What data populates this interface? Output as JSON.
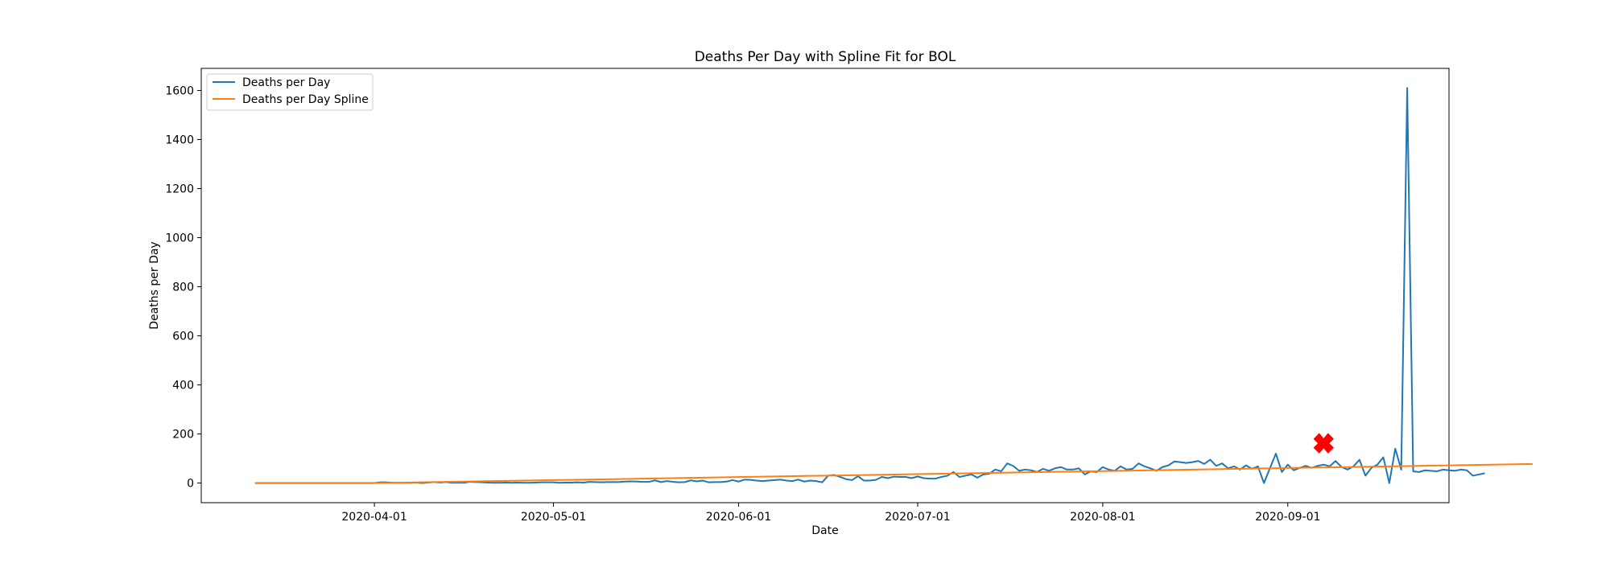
{
  "chart_data": {
    "type": "line",
    "title": "Deaths Per Day with Spline Fit for BOL",
    "xlabel": "Date",
    "ylabel": "Deaths per Day",
    "x_start_date": "2020-03-12",
    "x_end_date": "2020-09-19",
    "xlim": [
      "2020-03-03",
      "2020-09-28"
    ],
    "ylim": [
      -80,
      1690
    ],
    "x_ticks": [
      "2020-04-01",
      "2020-05-01",
      "2020-06-01",
      "2020-07-01",
      "2020-08-01",
      "2020-09-01"
    ],
    "y_ticks": [
      0,
      200,
      400,
      600,
      800,
      1000,
      1200,
      1400,
      1600
    ],
    "grid": false,
    "legend_position": "upper-left",
    "series": [
      {
        "name": "Deaths per Day",
        "color": "#1f77b4",
        "values": [
          0,
          0,
          0,
          0,
          0,
          0,
          0,
          0,
          0,
          0,
          0,
          0,
          0,
          0,
          0,
          0,
          0,
          0,
          0,
          0,
          0,
          3,
          3,
          1,
          1,
          1,
          1,
          2,
          0,
          2,
          4,
          2,
          4,
          1,
          2,
          1,
          5,
          4,
          3,
          2,
          1,
          1,
          2,
          1,
          2,
          1,
          1,
          2,
          3,
          3,
          3,
          1,
          2,
          2,
          3,
          2,
          5,
          4,
          3,
          4,
          4,
          4,
          6,
          7,
          6,
          5,
          5,
          11,
          4,
          8,
          5,
          3,
          4,
          11,
          7,
          10,
          3,
          4,
          4,
          6,
          12,
          6,
          14,
          13,
          10,
          8,
          10,
          12,
          14,
          10,
          8,
          14,
          6,
          10,
          8,
          3,
          30,
          33,
          25,
          16,
          12,
          28,
          10,
          10,
          13,
          25,
          20,
          26,
          25,
          25,
          20,
          27,
          20,
          18,
          18,
          25,
          30,
          45,
          25,
          30,
          35,
          22,
          35,
          38,
          55,
          48,
          80,
          70,
          50,
          55,
          52,
          45,
          58,
          50,
          60,
          65,
          55,
          55,
          60,
          35,
          48,
          45,
          65,
          55,
          50,
          68,
          55,
          58,
          80,
          68,
          60,
          50,
          65,
          72,
          88,
          85,
          82,
          85,
          90,
          78,
          95,
          70,
          80,
          60,
          68,
          55,
          72,
          58,
          68,
          0,
          60,
          120,
          45,
          75,
          52,
          62,
          70,
          62,
          70,
          75,
          68,
          90,
          65,
          55,
          68,
          95,
          30,
          62,
          75,
          105,
          0,
          140,
          55,
          1610,
          48,
          45,
          52,
          50,
          48,
          55,
          52,
          50,
          55,
          52,
          30,
          35,
          40
        ]
      },
      {
        "name": "Deaths per Day Spline",
        "color": "#ff7f0e",
        "values": [
          0,
          0,
          0,
          0,
          0,
          0,
          0,
          0,
          0,
          0,
          0,
          0,
          0,
          0,
          0,
          0,
          0,
          0,
          0,
          0,
          0,
          0.4,
          0.8,
          1.2,
          1.6,
          2.0,
          2.4,
          2.8,
          3.2,
          3.6,
          4.0,
          4.4,
          4.8,
          5.2,
          5.6,
          6.0,
          6.4,
          6.8,
          7.2,
          7.6,
          8.0,
          8.4,
          8.8,
          9.2,
          9.6,
          10.0,
          10.4,
          10.8,
          11.2,
          11.6,
          12.0,
          12.4,
          12.8,
          13.2,
          13.6,
          14.0,
          14.4,
          14.8,
          15.2,
          15.6,
          16.0,
          16.4,
          16.8,
          17.2,
          17.6,
          18.0,
          18.4,
          18.8,
          19.2,
          19.6,
          20.0,
          20.4,
          20.8,
          21.2,
          21.6,
          22.0,
          22.4,
          22.8,
          23.2,
          23.6,
          24.0,
          24.4,
          24.8,
          25.2,
          25.6,
          26.0,
          26.4,
          26.8,
          27.2,
          27.6,
          28.0,
          28.4,
          28.8,
          29.2,
          29.6,
          30.0,
          30.4,
          30.8,
          31.2,
          31.6,
          32.0,
          32.4,
          32.8,
          33.2,
          33.6,
          34.0,
          34.4,
          34.8,
          35.2,
          35.6,
          36.0,
          36.4,
          36.8,
          37.2,
          37.6,
          38.0,
          38.4,
          38.8,
          39.2,
          39.6,
          40.0,
          40.4,
          40.8,
          41.2,
          41.6,
          42.0,
          42.4,
          42.8,
          43.2,
          43.6,
          44.0,
          44.4,
          44.8,
          45.2,
          45.6,
          46.0,
          46.4,
          46.8,
          47.2,
          47.6,
          48.0,
          48.4,
          48.8,
          49.2,
          49.6,
          50.0,
          50.4,
          50.8,
          51.2,
          51.6,
          52.0,
          52.4,
          52.8,
          53.2,
          53.6,
          54.0,
          54.4,
          54.8,
          55.2,
          55.6,
          56.0,
          56.4,
          56.8,
          57.2,
          57.6,
          58.0,
          58.4,
          58.8,
          59.2,
          59.6,
          60.0,
          60.4,
          60.8,
          61.2,
          61.6,
          62.0,
          62.4,
          62.8,
          63.2,
          63.6,
          64.0,
          64.4,
          64.8,
          65.2,
          65.6,
          66.0,
          66.4,
          66.8,
          67.2,
          67.6,
          68.0,
          68.4,
          68.8,
          69.2,
          69.6,
          70.0,
          70.4,
          70.8,
          71.2,
          71.6,
          72.0,
          72.4,
          72.8,
          73.2,
          73.6,
          74.0,
          74.4,
          74.8,
          75.2,
          75.6,
          76.0,
          76.4,
          76.8,
          77.2,
          77.6
        ]
      }
    ],
    "marker": {
      "date": "2020-09-07",
      "value": 162,
      "color": "#ff0000",
      "symbol": "X"
    }
  }
}
